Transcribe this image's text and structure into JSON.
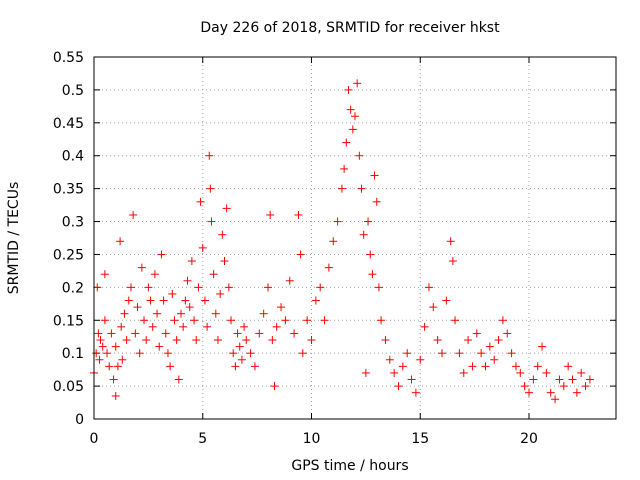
{
  "chart_data": {
    "type": "scatter",
    "title": "Day 226 of 2018, SRMTID for receiver hkst",
    "xlabel": "GPS time / hours",
    "ylabel": "SRMTID / TECUs",
    "xlim": [
      0,
      24
    ],
    "ylim": [
      0,
      0.55
    ],
    "xticks": [
      0,
      5,
      10,
      15,
      20
    ],
    "yticks": [
      0,
      0.05,
      0.1,
      0.15,
      0.2,
      0.25,
      0.3,
      0.35,
      0.4,
      0.45,
      0.5,
      0.55
    ],
    "grid": true,
    "marker": "+",
    "color": "#ff0000",
    "series": [
      {
        "name": "SRMTID",
        "points": [
          [
            0.0,
            0.07
          ],
          [
            0.1,
            0.1
          ],
          [
            0.15,
            0.2
          ],
          [
            0.2,
            0.13
          ],
          [
            0.25,
            0.09
          ],
          [
            0.3,
            0.12
          ],
          [
            0.4,
            0.11
          ],
          [
            0.5,
            0.15
          ],
          [
            0.5,
            0.22
          ],
          [
            0.6,
            0.1
          ],
          [
            0.7,
            0.08
          ],
          [
            0.8,
            0.13
          ],
          [
            0.9,
            0.06
          ],
          [
            1.0,
            0.035
          ],
          [
            1.0,
            0.11
          ],
          [
            1.1,
            0.08
          ],
          [
            1.2,
            0.27
          ],
          [
            1.25,
            0.14
          ],
          [
            1.3,
            0.09
          ],
          [
            1.4,
            0.16
          ],
          [
            1.5,
            0.12
          ],
          [
            1.6,
            0.18
          ],
          [
            1.7,
            0.2
          ],
          [
            1.8,
            0.31
          ],
          [
            1.9,
            0.13
          ],
          [
            2.0,
            0.17
          ],
          [
            2.1,
            0.1
          ],
          [
            2.2,
            0.23
          ],
          [
            2.3,
            0.15
          ],
          [
            2.4,
            0.12
          ],
          [
            2.5,
            0.2
          ],
          [
            2.6,
            0.18
          ],
          [
            2.7,
            0.14
          ],
          [
            2.8,
            0.22
          ],
          [
            2.9,
            0.16
          ],
          [
            3.0,
            0.11
          ],
          [
            3.1,
            0.25
          ],
          [
            3.2,
            0.18
          ],
          [
            3.3,
            0.13
          ],
          [
            3.4,
            0.1
          ],
          [
            3.5,
            0.08
          ],
          [
            3.6,
            0.19
          ],
          [
            3.7,
            0.15
          ],
          [
            3.8,
            0.12
          ],
          [
            3.9,
            0.06
          ],
          [
            4.0,
            0.16
          ],
          [
            4.1,
            0.14
          ],
          [
            4.2,
            0.18
          ],
          [
            4.3,
            0.21
          ],
          [
            4.4,
            0.17
          ],
          [
            4.5,
            0.24
          ],
          [
            4.6,
            0.15
          ],
          [
            4.7,
            0.12
          ],
          [
            4.8,
            0.2
          ],
          [
            4.9,
            0.33
          ],
          [
            5.0,
            0.26
          ],
          [
            5.1,
            0.18
          ],
          [
            5.2,
            0.14
          ],
          [
            5.3,
            0.4
          ],
          [
            5.35,
            0.35
          ],
          [
            5.4,
            0.3
          ],
          [
            5.5,
            0.22
          ],
          [
            5.6,
            0.16
          ],
          [
            5.7,
            0.12
          ],
          [
            5.8,
            0.19
          ],
          [
            5.9,
            0.28
          ],
          [
            6.0,
            0.24
          ],
          [
            6.1,
            0.32
          ],
          [
            6.2,
            0.2
          ],
          [
            6.3,
            0.15
          ],
          [
            6.4,
            0.1
          ],
          [
            6.5,
            0.08
          ],
          [
            6.6,
            0.13
          ],
          [
            6.7,
            0.11
          ],
          [
            6.8,
            0.09
          ],
          [
            6.9,
            0.14
          ],
          [
            7.0,
            0.12
          ],
          [
            7.2,
            0.1
          ],
          [
            7.4,
            0.08
          ],
          [
            7.6,
            0.13
          ],
          [
            7.8,
            0.16
          ],
          [
            8.0,
            0.2
          ],
          [
            8.1,
            0.31
          ],
          [
            8.2,
            0.12
          ],
          [
            8.3,
            0.05
          ],
          [
            8.4,
            0.14
          ],
          [
            8.6,
            0.17
          ],
          [
            8.8,
            0.15
          ],
          [
            9.0,
            0.21
          ],
          [
            9.2,
            0.13
          ],
          [
            9.4,
            0.31
          ],
          [
            9.5,
            0.25
          ],
          [
            9.6,
            0.1
          ],
          [
            9.8,
            0.15
          ],
          [
            10.0,
            0.12
          ],
          [
            10.2,
            0.18
          ],
          [
            10.4,
            0.2
          ],
          [
            10.6,
            0.15
          ],
          [
            10.8,
            0.23
          ],
          [
            11.0,
            0.27
          ],
          [
            11.2,
            0.3
          ],
          [
            11.4,
            0.35
          ],
          [
            11.5,
            0.38
          ],
          [
            11.6,
            0.42
          ],
          [
            11.7,
            0.5
          ],
          [
            11.8,
            0.47
          ],
          [
            11.9,
            0.44
          ],
          [
            12.0,
            0.46
          ],
          [
            12.1,
            0.51
          ],
          [
            12.2,
            0.4
          ],
          [
            12.3,
            0.35
          ],
          [
            12.4,
            0.28
          ],
          [
            12.5,
            0.07
          ],
          [
            12.6,
            0.3
          ],
          [
            12.7,
            0.25
          ],
          [
            12.8,
            0.22
          ],
          [
            12.9,
            0.37
          ],
          [
            13.0,
            0.33
          ],
          [
            13.1,
            0.2
          ],
          [
            13.2,
            0.15
          ],
          [
            13.4,
            0.12
          ],
          [
            13.6,
            0.09
          ],
          [
            13.8,
            0.07
          ],
          [
            14.0,
            0.05
          ],
          [
            14.2,
            0.08
          ],
          [
            14.4,
            0.1
          ],
          [
            14.6,
            0.06
          ],
          [
            14.8,
            0.04
          ],
          [
            15.0,
            0.09
          ],
          [
            15.2,
            0.14
          ],
          [
            15.4,
            0.2
          ],
          [
            15.6,
            0.17
          ],
          [
            15.8,
            0.12
          ],
          [
            16.0,
            0.1
          ],
          [
            16.2,
            0.18
          ],
          [
            16.4,
            0.27
          ],
          [
            16.5,
            0.24
          ],
          [
            16.6,
            0.15
          ],
          [
            16.8,
            0.1
          ],
          [
            17.0,
            0.07
          ],
          [
            17.2,
            0.12
          ],
          [
            17.4,
            0.08
          ],
          [
            17.6,
            0.13
          ],
          [
            17.8,
            0.1
          ],
          [
            18.0,
            0.08
          ],
          [
            18.2,
            0.11
          ],
          [
            18.4,
            0.09
          ],
          [
            18.6,
            0.12
          ],
          [
            18.8,
            0.15
          ],
          [
            19.0,
            0.13
          ],
          [
            19.2,
            0.1
          ],
          [
            19.4,
            0.08
          ],
          [
            19.6,
            0.07
          ],
          [
            19.8,
            0.05
          ],
          [
            20.0,
            0.04
          ],
          [
            20.2,
            0.06
          ],
          [
            20.4,
            0.08
          ],
          [
            20.6,
            0.11
          ],
          [
            20.8,
            0.07
          ],
          [
            21.0,
            0.04
          ],
          [
            21.2,
            0.03
          ],
          [
            21.4,
            0.06
          ],
          [
            21.6,
            0.05
          ],
          [
            21.8,
            0.08
          ],
          [
            22.0,
            0.06
          ],
          [
            22.2,
            0.04
          ],
          [
            22.4,
            0.07
          ],
          [
            22.6,
            0.05
          ],
          [
            22.8,
            0.06
          ]
        ]
      }
    ]
  }
}
